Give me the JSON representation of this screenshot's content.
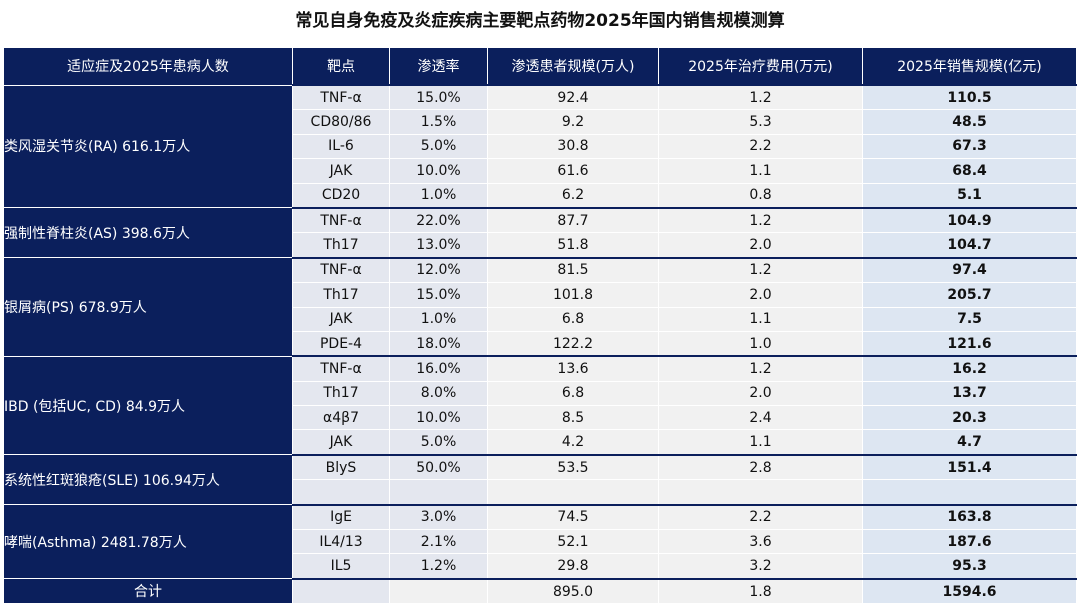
{
  "title": "常见自身免疫及炎症疾病主要靶点药物2025年国内销售规模测算",
  "table": {
    "headers": [
      "适应症及2025年患病人数",
      "靶点",
      "渗透率",
      "渗透患者规模(万人)",
      "2025年治疗费用(万元)",
      "2025年销售规模(亿元)"
    ],
    "groups": [
      {
        "indication": "类风湿关节炎(RA) 616.1万人",
        "rows": [
          [
            "TNF-α",
            "15.0%",
            "92.4",
            "1.2",
            "110.5"
          ],
          [
            "CD80/86",
            "1.5%",
            "9.2",
            "5.3",
            "48.5"
          ],
          [
            "IL-6",
            "5.0%",
            "30.8",
            "2.2",
            "67.3"
          ],
          [
            "JAK",
            "10.0%",
            "61.6",
            "1.1",
            "68.4"
          ],
          [
            "CD20",
            "1.0%",
            "6.2",
            "0.8",
            "5.1"
          ]
        ]
      },
      {
        "indication": "强制性脊柱炎(AS) 398.6万人",
        "rows": [
          [
            "TNF-α",
            "22.0%",
            "87.7",
            "1.2",
            "104.9"
          ],
          [
            "Th17",
            "13.0%",
            "51.8",
            "2.0",
            "104.7"
          ]
        ]
      },
      {
        "indication": "银屑病(PS) 678.9万人",
        "rows": [
          [
            "TNF-α",
            "12.0%",
            "81.5",
            "1.2",
            "97.4"
          ],
          [
            "Th17",
            "15.0%",
            "101.8",
            "2.0",
            "205.7"
          ],
          [
            "JAK",
            "1.0%",
            "6.8",
            "1.1",
            "7.5"
          ],
          [
            "PDE-4",
            "18.0%",
            "122.2",
            "1.0",
            "121.6"
          ]
        ]
      },
      {
        "indication": "IBD (包括UC, CD) 84.9万人",
        "rows": [
          [
            "TNF-α",
            "16.0%",
            "13.6",
            "1.2",
            "16.2"
          ],
          [
            "Th17",
            "8.0%",
            "6.8",
            "2.0",
            "13.7"
          ],
          [
            "α4β7",
            "10.0%",
            "8.5",
            "2.4",
            "20.3"
          ],
          [
            "JAK",
            "5.0%",
            "4.2",
            "1.1",
            "4.7"
          ]
        ]
      },
      {
        "indication": "系统性红斑狼疮(SLE) 106.94万人",
        "rows": [
          [
            "BlyS",
            "50.0%",
            "53.5",
            "2.8",
            "151.4"
          ]
        ]
      },
      {
        "indication": "哮喘(Asthma) 2481.78万人",
        "rows": [
          [
            "IgE",
            "3.0%",
            "74.5",
            "2.2",
            "163.8"
          ],
          [
            "IL4/13",
            "2.1%",
            "52.1",
            "3.6",
            "187.6"
          ],
          [
            "IL5",
            "1.2%",
            "29.8",
            "3.2",
            "95.3"
          ]
        ]
      }
    ],
    "total": {
      "label": "合计",
      "patients": "895.0",
      "cost": "1.8",
      "sales": "1594.6"
    }
  }
}
